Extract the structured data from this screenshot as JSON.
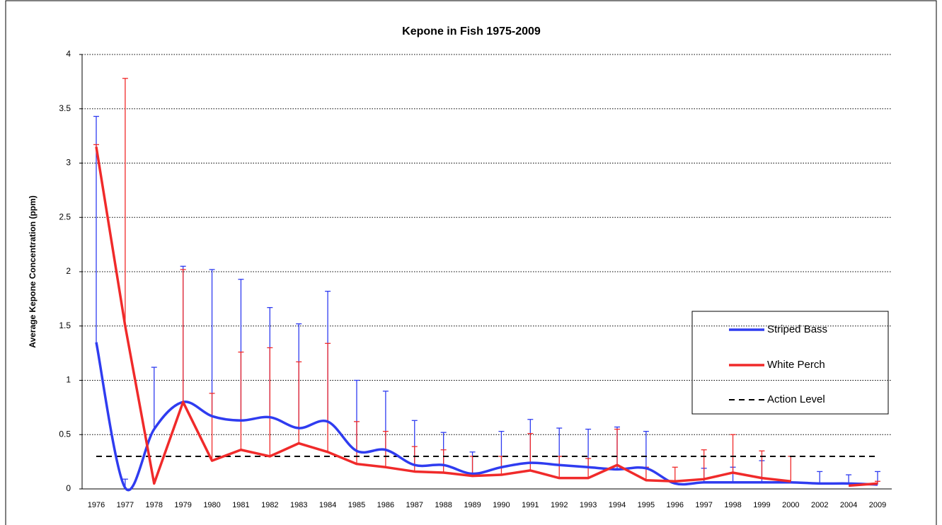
{
  "chart_data": {
    "type": "line",
    "title": "Kepone in Fish 1975-2009",
    "y_label": "Average Kepone Concentration (ppm)",
    "categories": [
      "1976",
      "1977",
      "1978",
      "1979",
      "1980",
      "1981",
      "1982",
      "1983",
      "1984",
      "1985",
      "1986",
      "1987",
      "1988",
      "1989",
      "1990",
      "1991",
      "1992",
      "1993",
      "1994",
      "1995",
      "1996",
      "1997",
      "1998",
      "1999",
      "2000",
      "2002",
      "2004",
      "2009"
    ],
    "series": [
      {
        "name": "Striped Bass",
        "color": "#2f3cf0",
        "smooth": true,
        "values": [
          1.35,
          0.01,
          0.55,
          0.8,
          0.67,
          0.63,
          0.66,
          0.56,
          0.62,
          0.35,
          0.36,
          0.22,
          0.22,
          0.14,
          0.2,
          0.24,
          0.22,
          0.2,
          0.18,
          0.19,
          0.05,
          0.06,
          0.06,
          0.06,
          0.06,
          0.05,
          0.05,
          0.04
        ],
        "errors": [
          2.08,
          0.08,
          0.57,
          1.25,
          1.35,
          1.3,
          1.01,
          0.96,
          1.2,
          0.65,
          0.54,
          0.41,
          0.3,
          0.2,
          0.33,
          0.4,
          0.34,
          0.35,
          0.39,
          0.34,
          null,
          0.13,
          0.14,
          0.2,
          null,
          0.11,
          0.08,
          0.12
        ]
      },
      {
        "name": "White Perch",
        "color": "#f02a2a",
        "smooth": false,
        "values": [
          3.15,
          1.5,
          0.05,
          0.8,
          0.26,
          0.36,
          0.3,
          0.42,
          0.34,
          0.23,
          0.2,
          0.16,
          0.15,
          0.12,
          0.13,
          0.17,
          0.1,
          0.1,
          0.22,
          0.08,
          0.07,
          0.09,
          0.15,
          0.1,
          0.07,
          null,
          0.03,
          0.05
        ],
        "errors": [
          0.02,
          2.28,
          null,
          1.22,
          0.62,
          0.9,
          1.0,
          0.75,
          1.0,
          0.39,
          0.33,
          0.23,
          0.21,
          0.18,
          0.17,
          0.34,
          0.2,
          0.18,
          0.33,
          0.12,
          0.13,
          0.27,
          0.35,
          0.25,
          0.23,
          null,
          null,
          0.02
        ]
      }
    ],
    "action_level": {
      "name": "Action Level",
      "value": 0.3,
      "color": "#000000"
    },
    "ylim": [
      0,
      4
    ],
    "yticks": [
      0,
      0.5,
      1,
      1.5,
      2,
      2.5,
      3,
      3.5,
      4
    ],
    "grid": true,
    "legend": "right"
  }
}
